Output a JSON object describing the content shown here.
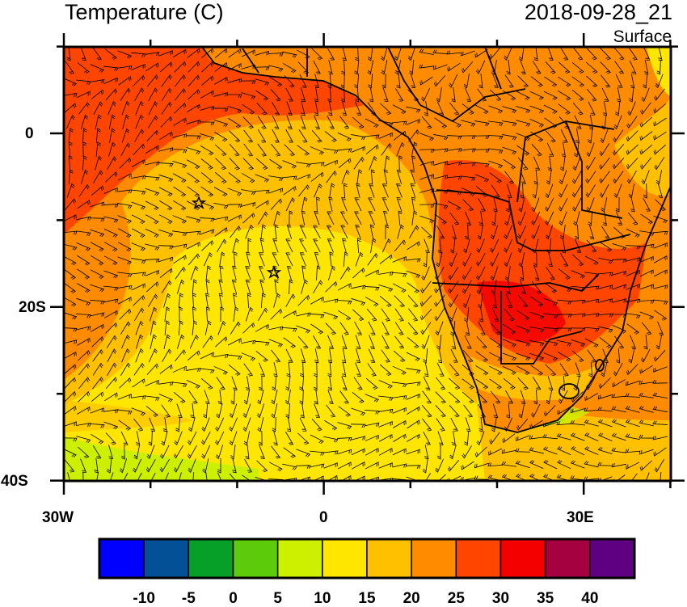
{
  "header": {
    "title": "Temperature (C)",
    "timestamp": "2018-09-28_21",
    "level": "Surface"
  },
  "map": {
    "extent": {
      "lon": [
        -30,
        40
      ],
      "lat": [
        -40,
        10
      ]
    },
    "x_ticks": [
      "30W",
      "0",
      "30E"
    ],
    "y_ticks": [
      "0",
      "20S",
      "40S"
    ],
    "overlay": "wind barbs",
    "markers": "stars"
  },
  "colorbar": {
    "labels": [
      "-10",
      "-5",
      "0",
      "5",
      "10",
      "15",
      "20",
      "25",
      "30",
      "35",
      "40"
    ],
    "colors": [
      "#0000ff",
      "#045096",
      "#06a028",
      "#5ccc0a",
      "#ccf000",
      "#ffe600",
      "#ffc000",
      "#ff8c00",
      "#ff4500",
      "#f50000",
      "#a50040",
      "#5f0082"
    ]
  }
}
